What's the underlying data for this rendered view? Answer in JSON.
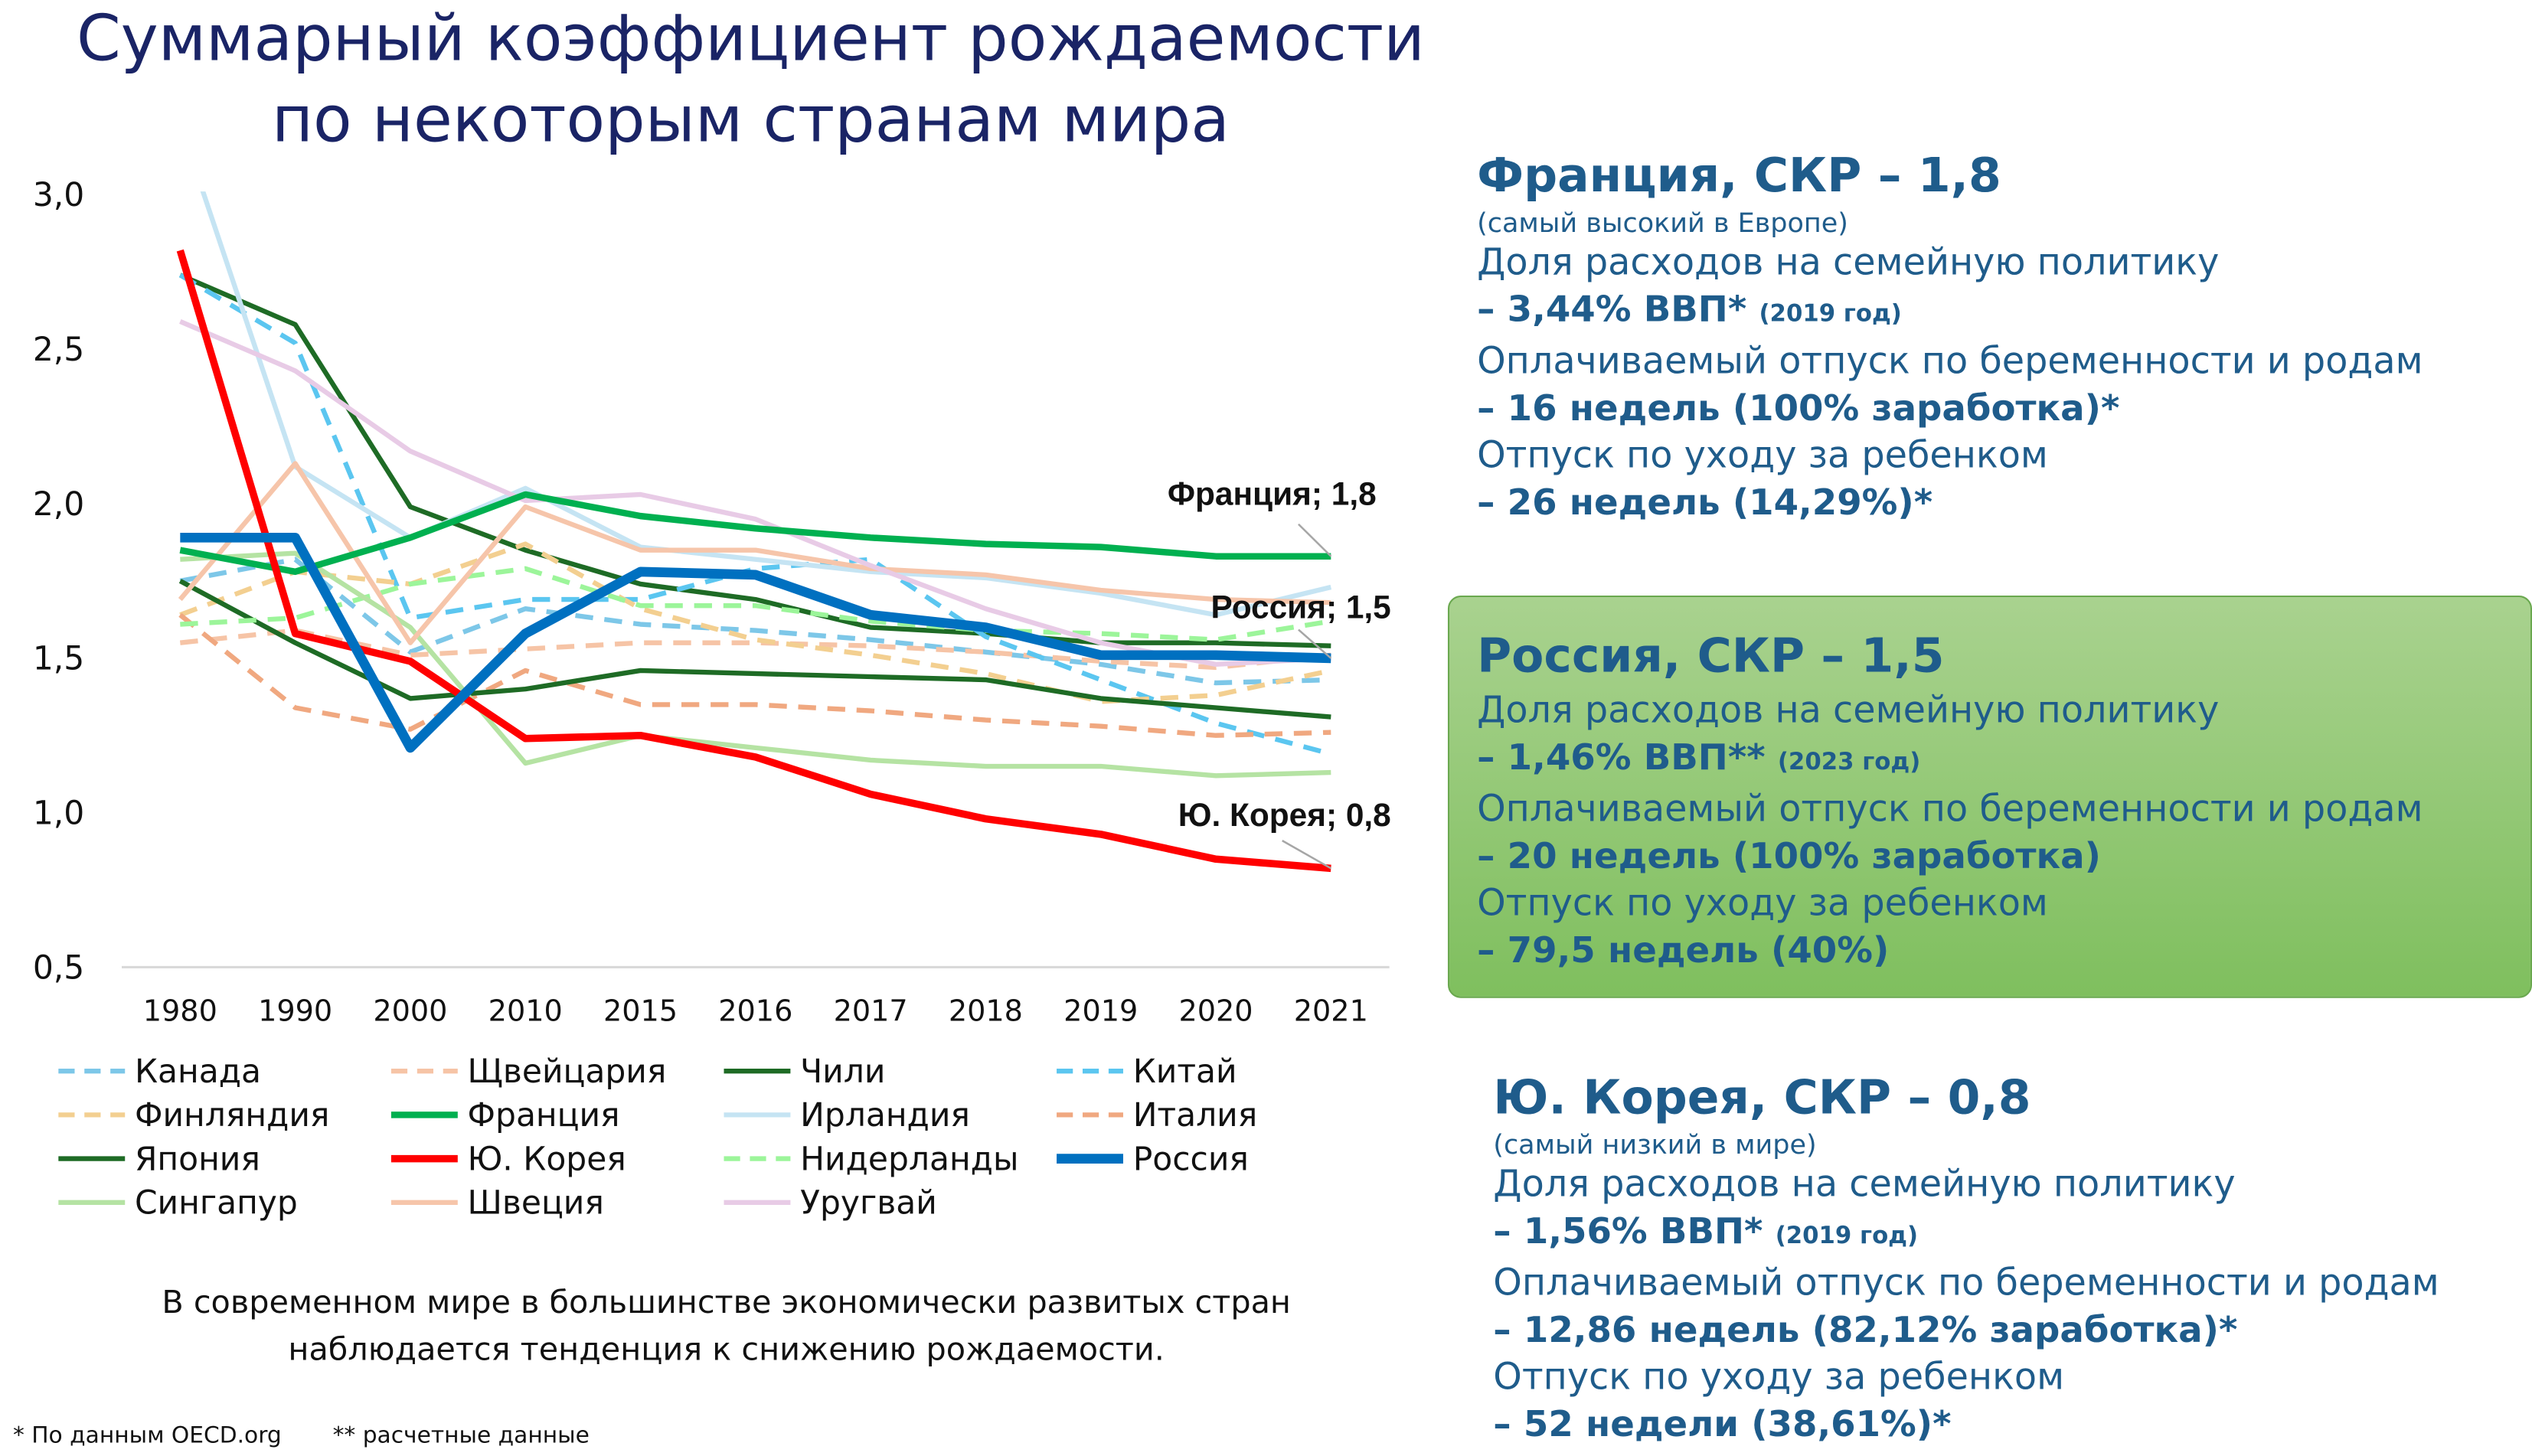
{
  "title": {
    "line1": "Суммарный коэффициент рождаемости",
    "line2": "по некоторым странам мира"
  },
  "chart_data": {
    "type": "line",
    "title": "Суммарный коэффициент рождаемости по некоторым странам мира",
    "categories": [
      "1980",
      "1990",
      "2000",
      "2010",
      "2015",
      "2016",
      "2017",
      "2018",
      "2019",
      "2020",
      "2021"
    ],
    "ylim": [
      0.5,
      3.0
    ],
    "y_ticks": [
      {
        "value": 3.0,
        "label": "3,0"
      },
      {
        "value": 2.5,
        "label": "2,5"
      },
      {
        "value": 2.0,
        "label": "2,0"
      },
      {
        "value": 1.5,
        "label": "1,5"
      },
      {
        "value": 1.0,
        "label": "1,0"
      },
      {
        "value": 0.5,
        "label": "0,5"
      }
    ],
    "grid": false,
    "legend_position": "bottom",
    "series": [
      {
        "name": "Канада",
        "color": "#7dc7e8",
        "dash": true,
        "values": [
          1.75,
          1.82,
          1.52,
          1.66,
          1.61,
          1.59,
          1.56,
          1.52,
          1.48,
          1.42,
          1.43
        ]
      },
      {
        "name": "Щвейцария",
        "color": "#f6c4a6",
        "dash": true,
        "values": [
          1.55,
          1.59,
          1.51,
          1.53,
          1.55,
          1.55,
          1.54,
          1.52,
          1.49,
          1.47,
          1.51
        ]
      },
      {
        "name": "Чили",
        "color": "#1e6b25",
        "dash": false,
        "values": [
          2.74,
          2.58,
          1.99,
          1.85,
          1.74,
          1.69,
          1.6,
          1.58,
          1.55,
          1.55,
          1.54
        ]
      },
      {
        "name": "Китай",
        "color": "#5bc6f0",
        "dash": true,
        "values": [
          2.74,
          2.52,
          1.63,
          1.69,
          1.69,
          1.79,
          1.82,
          1.57,
          1.43,
          1.29,
          1.19
        ]
      },
      {
        "name": "Финляндия",
        "color": "#f3cf90",
        "dash": true,
        "values": [
          1.64,
          1.78,
          1.74,
          1.87,
          1.66,
          1.56,
          1.51,
          1.45,
          1.36,
          1.38,
          1.46
        ]
      },
      {
        "name": "Франция",
        "color": "#00b050",
        "dash": false,
        "values": [
          1.85,
          1.78,
          1.89,
          2.03,
          1.96,
          1.92,
          1.89,
          1.87,
          1.86,
          1.83,
          1.83
        ]
      },
      {
        "name": "Ирландия",
        "color": "#c5e4f3",
        "dash": false,
        "values": [
          3.23,
          2.12,
          1.89,
          2.05,
          1.86,
          1.82,
          1.78,
          1.76,
          1.71,
          1.64,
          1.73
        ]
      },
      {
        "name": "Италия",
        "color": "#f0a880",
        "dash": true,
        "values": [
          1.64,
          1.34,
          1.27,
          1.46,
          1.35,
          1.35,
          1.33,
          1.3,
          1.28,
          1.25,
          1.26
        ]
      },
      {
        "name": "Япония",
        "color": "#1e6b25",
        "dash": false,
        "values": [
          1.75,
          1.55,
          1.37,
          1.4,
          1.46,
          1.45,
          1.44,
          1.43,
          1.37,
          1.34,
          1.31
        ]
      },
      {
        "name": "Ю. Корея",
        "color": "#ff0000",
        "dash": false,
        "values": [
          2.82,
          1.58,
          1.49,
          1.24,
          1.25,
          1.18,
          1.06,
          0.98,
          0.93,
          0.85,
          0.82
        ]
      },
      {
        "name": "Нидерланды",
        "color": "#9cf59a",
        "dash": true,
        "values": [
          1.61,
          1.63,
          1.74,
          1.79,
          1.67,
          1.67,
          1.62,
          1.59,
          1.58,
          1.56,
          1.62
        ]
      },
      {
        "name": "Россия",
        "color": "#0070c0",
        "dash": false,
        "values": [
          1.89,
          1.89,
          1.21,
          1.58,
          1.78,
          1.77,
          1.64,
          1.6,
          1.51,
          1.51,
          1.5
        ]
      },
      {
        "name": "Сингапур",
        "color": "#b5e3a3",
        "dash": false,
        "values": [
          1.82,
          1.84,
          1.6,
          1.16,
          1.25,
          1.21,
          1.17,
          1.15,
          1.15,
          1.12,
          1.13
        ]
      },
      {
        "name": "Швеция",
        "color": "#f6c5aa",
        "dash": false,
        "values": [
          1.69,
          2.13,
          1.55,
          1.99,
          1.85,
          1.85,
          1.79,
          1.77,
          1.72,
          1.69,
          1.68
        ]
      },
      {
        "name": "Уругвай",
        "color": "#e8cbe6",
        "dash": false,
        "values": [
          2.59,
          2.43,
          2.17,
          2.01,
          2.03,
          1.95,
          1.8,
          1.66,
          1.55,
          1.48,
          1.5
        ]
      }
    ],
    "annotations": [
      {
        "series": "Франция",
        "label": "Франция; 1,8"
      },
      {
        "series": "Россия",
        "label": "Россия; 1,5"
      },
      {
        "series": "Ю. Корея",
        "label": "Ю. Корея; 0,8"
      }
    ]
  },
  "caption": {
    "line1": "В современном мире в большинстве экономически развитых стран",
    "line2": "наблюдается тенденция к снижению рождаемости."
  },
  "footnotes": {
    "oecd": "* По данным OECD.org",
    "estimated": "** расчетные данные"
  },
  "france": {
    "heading": "Франция, СКР – 1,8",
    "note": "(самый высокий в Европе)",
    "spend_label": "Доля расходов на семейную политику",
    "spend_value": "– 3,44% ВВП*",
    "spend_year": "(2019 год)",
    "maternity_label": "Оплачиваемый отпуск по беременности и родам",
    "maternity_value": "– 16 недель (100% заработка)*",
    "childcare_label": "Отпуск по уходу за ребенком",
    "childcare_value": "– 26 недель (14,29%)*"
  },
  "russia": {
    "heading": "Россия, СКР – 1,5",
    "spend_label": "Доля расходов на семейную политику",
    "spend_value": "– 1,46% ВВП**",
    "spend_year": "(2023 год)",
    "maternity_label": "Оплачиваемый отпуск по беременности и родам",
    "maternity_value": "– 20 недель (100% заработка)",
    "childcare_label": "Отпуск по уходу за ребенком",
    "childcare_value": "– 79,5 недель (40%)"
  },
  "korea": {
    "heading": "Ю. Корея, СКР – 0,8",
    "note": "(самый низкий в мире)",
    "spend_label": "Доля расходов на семейную политику",
    "spend_value": "– 1,56% ВВП*",
    "spend_year": "(2019 год)",
    "maternity_label": "Оплачиваемый отпуск по беременности и родам",
    "maternity_value": "– 12,86 недель (82,12% заработка)*",
    "childcare_label": "Отпуск по уходу за ребенком",
    "childcare_value": "– 52 недели (38,61%)*"
  }
}
